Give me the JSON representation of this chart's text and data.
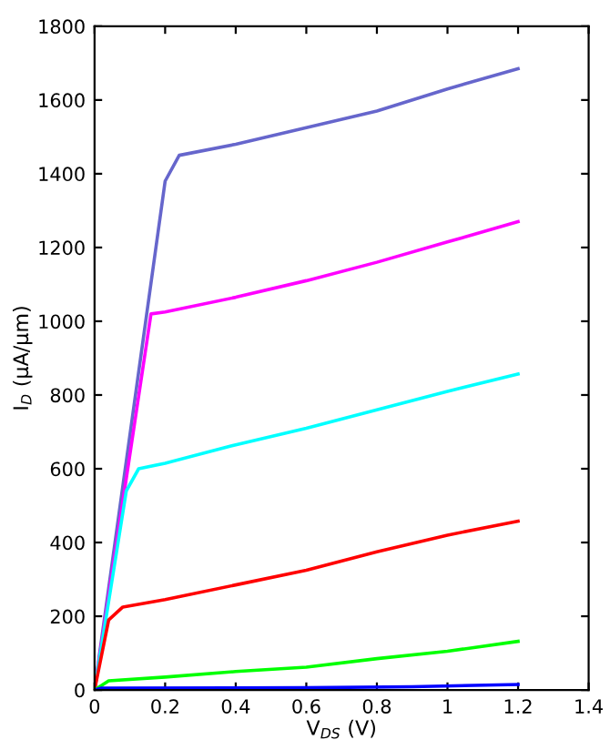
{
  "chart_data": {
    "type": "line",
    "xlabel": "V$_{DS}$ (V)",
    "ylabel": "I$_{D}$ (μA/μm)",
    "xlim": [
      0,
      1.4
    ],
    "ylim": [
      0,
      1800
    ],
    "xticks": [
      0,
      0.2,
      0.4,
      0.6,
      0.8,
      1,
      1.2,
      1.4
    ],
    "yticks": [
      0,
      200,
      400,
      600,
      800,
      1000,
      1200,
      1400,
      1600,
      1800
    ],
    "grid": false,
    "legend": false,
    "marker": "none",
    "line_style": "solid",
    "series": [
      {
        "color": "#6666cc",
        "x": [
          0,
          0.2,
          0.24,
          0.4,
          0.6,
          0.8,
          1.0,
          1.2
        ],
        "values": [
          0,
          1380,
          1450,
          1480,
          1525,
          1570,
          1630,
          1685
        ]
      },
      {
        "color": "#ff00ff",
        "x": [
          0,
          0.16,
          0.2,
          0.4,
          0.6,
          0.8,
          1.0,
          1.2
        ],
        "values": [
          0,
          1020,
          1025,
          1065,
          1110,
          1160,
          1215,
          1270
        ]
      },
      {
        "color": "#00ffff",
        "x": [
          0,
          0.09,
          0.125,
          0.2,
          0.4,
          0.6,
          0.8,
          1.0,
          1.2
        ],
        "values": [
          0,
          540,
          600,
          615,
          665,
          710,
          760,
          810,
          857
        ]
      },
      {
        "color": "#ff0000",
        "x": [
          0,
          0.04,
          0.08,
          0.2,
          0.4,
          0.6,
          0.8,
          1.0,
          1.2
        ],
        "values": [
          0,
          190,
          225,
          245,
          285,
          325,
          375,
          420,
          458
        ]
      },
      {
        "color": "#00ff00",
        "x": [
          0,
          0.04,
          0.2,
          0.4,
          0.6,
          0.8,
          1.0,
          1.2
        ],
        "values": [
          0,
          25,
          35,
          50,
          62,
          85,
          105,
          132
        ]
      },
      {
        "color": "#0000ff",
        "x": [
          0,
          0.02,
          0.6,
          0.9,
          1.2
        ],
        "values": [
          0,
          5,
          6,
          9,
          15
        ]
      }
    ]
  }
}
